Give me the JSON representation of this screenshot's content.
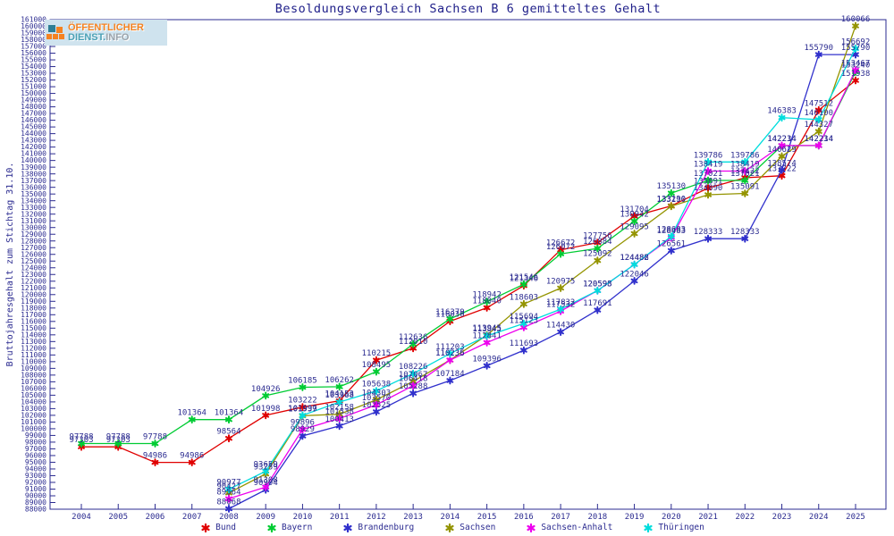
{
  "title": "Besoldungsvergleich Sachsen B 6 gemitteltes Gehalt",
  "logo": {
    "line1": "ÖFFENTLICHER",
    "line2_part1": "DIENST.",
    "line2_part2": "INFO"
  },
  "axis": {
    "ylabel": "Bruttojahresgehalt zum Stichtag 31.10.",
    "ymin": 88000,
    "ymax": 161000,
    "ystep": 1000,
    "text_color": "#2b2b90",
    "frame_color": "#2b2b90"
  },
  "legend": [
    {
      "label": "Bund",
      "color": "#e00000"
    },
    {
      "label": "Bayern",
      "color": "#00cc33"
    },
    {
      "label": "Brandenburg",
      "color": "#3030cc"
    },
    {
      "label": "Sachsen",
      "color": "#949400"
    },
    {
      "label": "Sachsen-Anhalt",
      "color": "#ee00ee"
    },
    {
      "label": "Thüringen",
      "color": "#00dddd"
    }
  ],
  "chart_data": {
    "type": "line",
    "title": "Besoldungsvergleich Sachsen B 6 gemitteltes Gehalt",
    "xlabel": "",
    "ylabel": "Bruttojahresgehalt zum Stichtag 31.10.",
    "ylim": [
      88000,
      161000
    ],
    "ytick_step": 1000,
    "grid": false,
    "legend_position": "bottom",
    "marker": "asterisk",
    "point_labels": true,
    "x": [
      2004,
      2005,
      2006,
      2007,
      2008,
      2009,
      2010,
      2011,
      2012,
      2013,
      2014,
      2015,
      2016,
      2017,
      2018,
      2019,
      2020,
      2021,
      2022,
      2023,
      2024,
      2025
    ],
    "series": [
      {
        "name": "Bund",
        "color": "#e00000",
        "values": [
          97303,
          97303,
          94986,
          94986,
          98564,
          101998,
          103222,
          104153,
          110215,
          112010,
          116030,
          118040,
          121346,
          126672,
          127756,
          131704,
          133230,
          135891,
          137422,
          137722,
          147512,
          151938
        ]
      },
      {
        "name": "Bayern",
        "color": "#00cc33",
        "values": [
          97788,
          97788,
          97788,
          101364,
          101364,
          104926,
          106185,
          106262,
          108495,
          112636,
          116379,
          118942,
          121546,
          126072,
          126884,
          130942,
          135130,
          137021,
          137021,
          142214,
          142214,
          153240
        ]
      },
      {
        "name": "Brandenburg",
        "color": "#3030cc",
        "values": [
          null,
          null,
          null,
          null,
          88068,
          90904,
          98929,
          100413,
          102525,
          105288,
          107184,
          109396,
          111693,
          114430,
          117691,
          122046,
          126561,
          128333,
          128333,
          138574,
          155790,
          155790
        ]
      },
      {
        "name": "Sachsen",
        "color": "#949400",
        "values": [
          null,
          null,
          null,
          null,
          90427,
          93259,
          101939,
          102158,
          104303,
          107067,
          110236,
          113945,
          118603,
          120975,
          125092,
          129095,
          133190,
          134890,
          135091,
          140629,
          144327,
          160066
        ]
      },
      {
        "name": "Sachsen-Anhalt",
        "color": "#ee00ee",
        "values": [
          null,
          null,
          null,
          null,
          89564,
          91308,
          99896,
          101538,
          103570,
          106418,
          110235,
          112841,
          115123,
          117532,
          120593,
          124482,
          128483,
          138419,
          138419,
          142234,
          142234,
          153467
        ]
      },
      {
        "name": "Thüringen",
        "color": "#00dddd",
        "values": [
          null,
          null,
          null,
          null,
          90977,
          93659,
          101997,
          103968,
          105638,
          108226,
          111203,
          113845,
          115694,
          117832,
          120598,
          124488,
          128683,
          139786,
          139786,
          146383,
          146100,
          156692
        ]
      }
    ]
  }
}
